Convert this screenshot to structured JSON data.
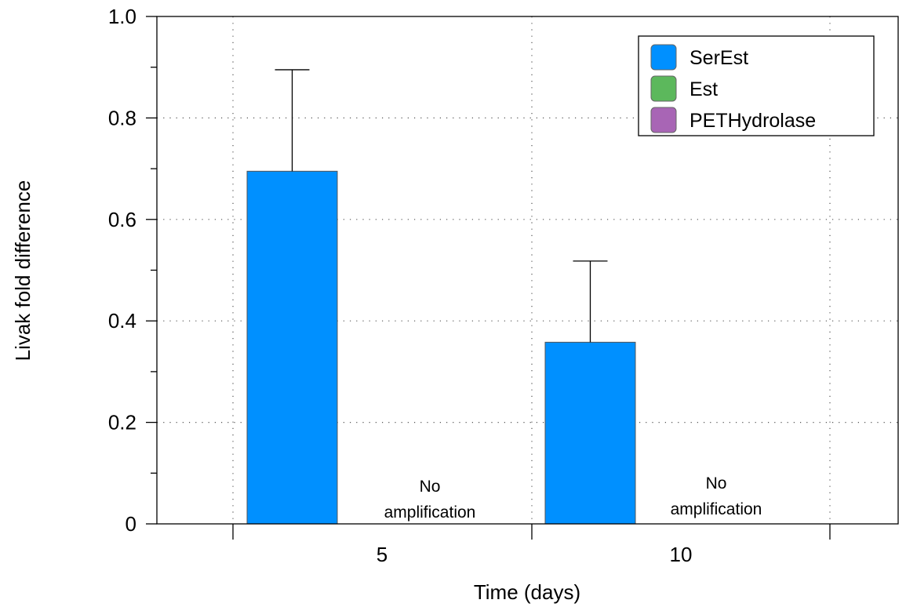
{
  "chart_data": {
    "type": "bar",
    "categories": [
      "5",
      "10"
    ],
    "xlabel": "Time (days)",
    "ylabel": "Livak fold difference",
    "ylim": [
      0,
      1.0
    ],
    "yticks": [
      "0",
      "0.2",
      "0.4",
      "0.6",
      "0.8",
      "1.0"
    ],
    "ytick_values": [
      0,
      0.2,
      0.4,
      0.6,
      0.8,
      1.0
    ],
    "grid": true,
    "legend_position": "top-right",
    "series": [
      {
        "name": "SerEst",
        "color": "#0090ff",
        "values": [
          0.695,
          0.358
        ],
        "errors": [
          0.2,
          0.16
        ]
      },
      {
        "name": "Est",
        "color": "#5cb85c",
        "values": [
          null,
          null
        ]
      },
      {
        "name": "PETHydrolase",
        "color": "#a865b5",
        "values": [
          null,
          null
        ]
      }
    ],
    "annotations": [
      {
        "category": "5",
        "lines": [
          "No",
          "amplification"
        ]
      },
      {
        "category": "10",
        "lines": [
          "No",
          "amplification"
        ]
      }
    ]
  }
}
